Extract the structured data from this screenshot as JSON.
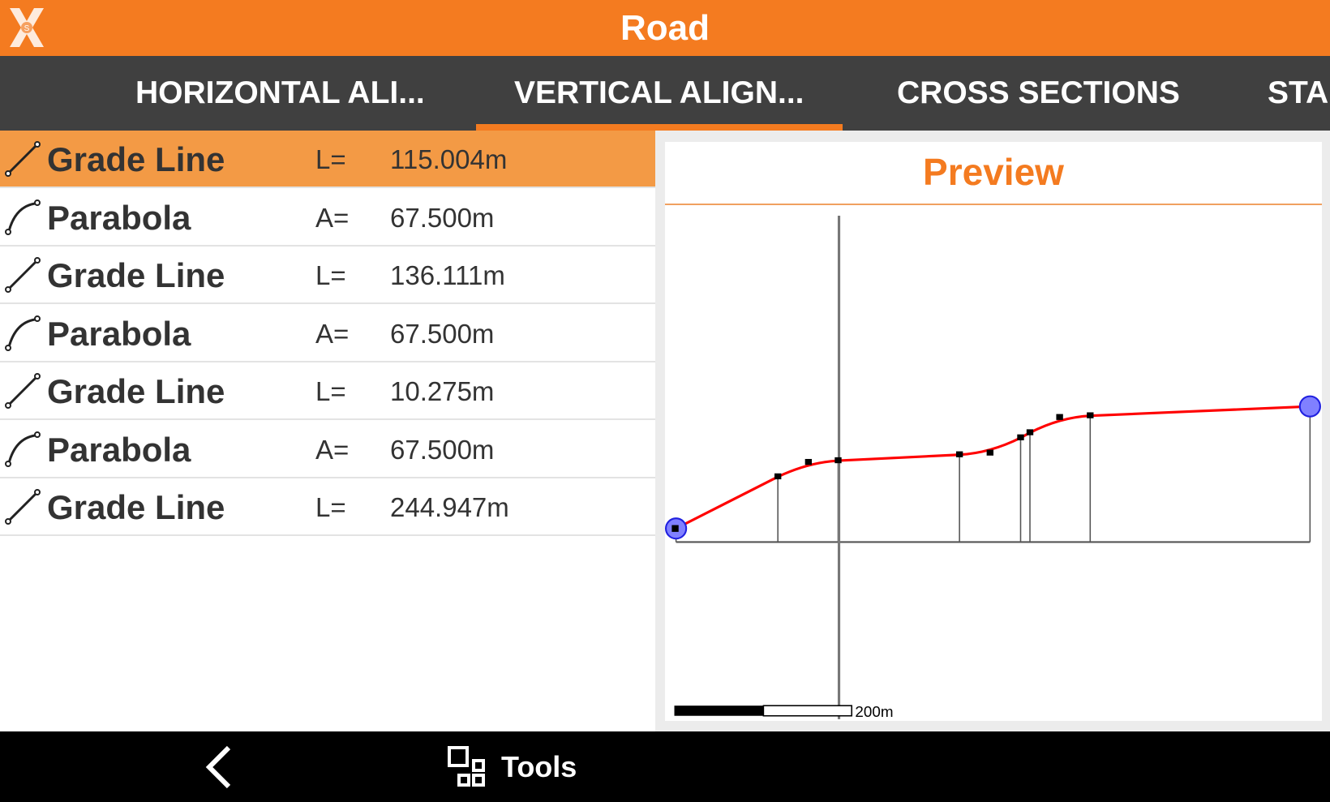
{
  "app": {
    "title": "Road",
    "logo_text": "S"
  },
  "tabs": [
    {
      "label": "HORIZONTAL ALI...",
      "active": false
    },
    {
      "label": "VERTICAL ALIGN...",
      "active": true
    },
    {
      "label": "CROSS SECTIONS",
      "active": false
    },
    {
      "label": "STA",
      "active": false
    }
  ],
  "elements": [
    {
      "type": "grade-line",
      "name": "Grade Line",
      "param": "L=",
      "value": "115.004m",
      "selected": true
    },
    {
      "type": "parabola",
      "name": "Parabola",
      "param": "A=",
      "value": "67.500m"
    },
    {
      "type": "grade-line",
      "name": "Grade Line",
      "param": "L=",
      "value": "136.111m"
    },
    {
      "type": "parabola",
      "name": "Parabola",
      "param": "A=",
      "value": "67.500m"
    },
    {
      "type": "grade-line",
      "name": "Grade Line",
      "param": "L=",
      "value": "10.275m"
    },
    {
      "type": "parabola",
      "name": "Parabola",
      "param": "A=",
      "value": "67.500m"
    },
    {
      "type": "grade-line",
      "name": "Grade Line",
      "param": "L=",
      "value": "244.947m"
    }
  ],
  "preview": {
    "title": "Preview",
    "scale_label": "200m",
    "profile_color": "#ff0000",
    "endpoint_color": "#8080ff"
  },
  "bottom": {
    "tools_label": "Tools"
  },
  "colors": {
    "accent": "#f47b20",
    "selected_row": "#f39a45",
    "tabbar": "#404040"
  }
}
